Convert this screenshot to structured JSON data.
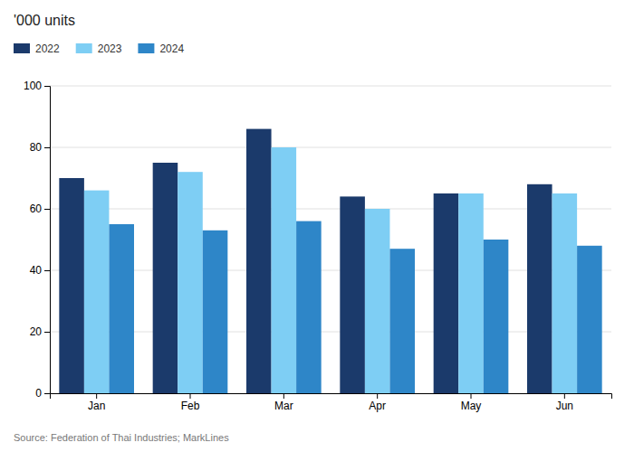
{
  "chart_data": {
    "type": "bar",
    "title": "'000 units",
    "annotations": [
      "Source: Federation of Thai Industries; MarkLines"
    ],
    "categories": [
      "Jan",
      "Feb",
      "Mar",
      "Apr",
      "May",
      "Jun"
    ],
    "series": [
      {
        "name": "2022",
        "color": "#1b3a6b",
        "values": [
          70,
          75,
          86,
          64,
          65,
          68
        ]
      },
      {
        "name": "2023",
        "color": "#7ecef4",
        "values": [
          66,
          72,
          80,
          60,
          65,
          65
        ]
      },
      {
        "name": "2024",
        "color": "#2e86c8",
        "values": [
          55,
          53,
          56,
          47,
          50,
          48
        ]
      }
    ],
    "ylim": [
      0,
      100
    ],
    "yticks": [
      0,
      20,
      40,
      60,
      80,
      100
    ],
    "grid": true,
    "legend": "top-left"
  }
}
